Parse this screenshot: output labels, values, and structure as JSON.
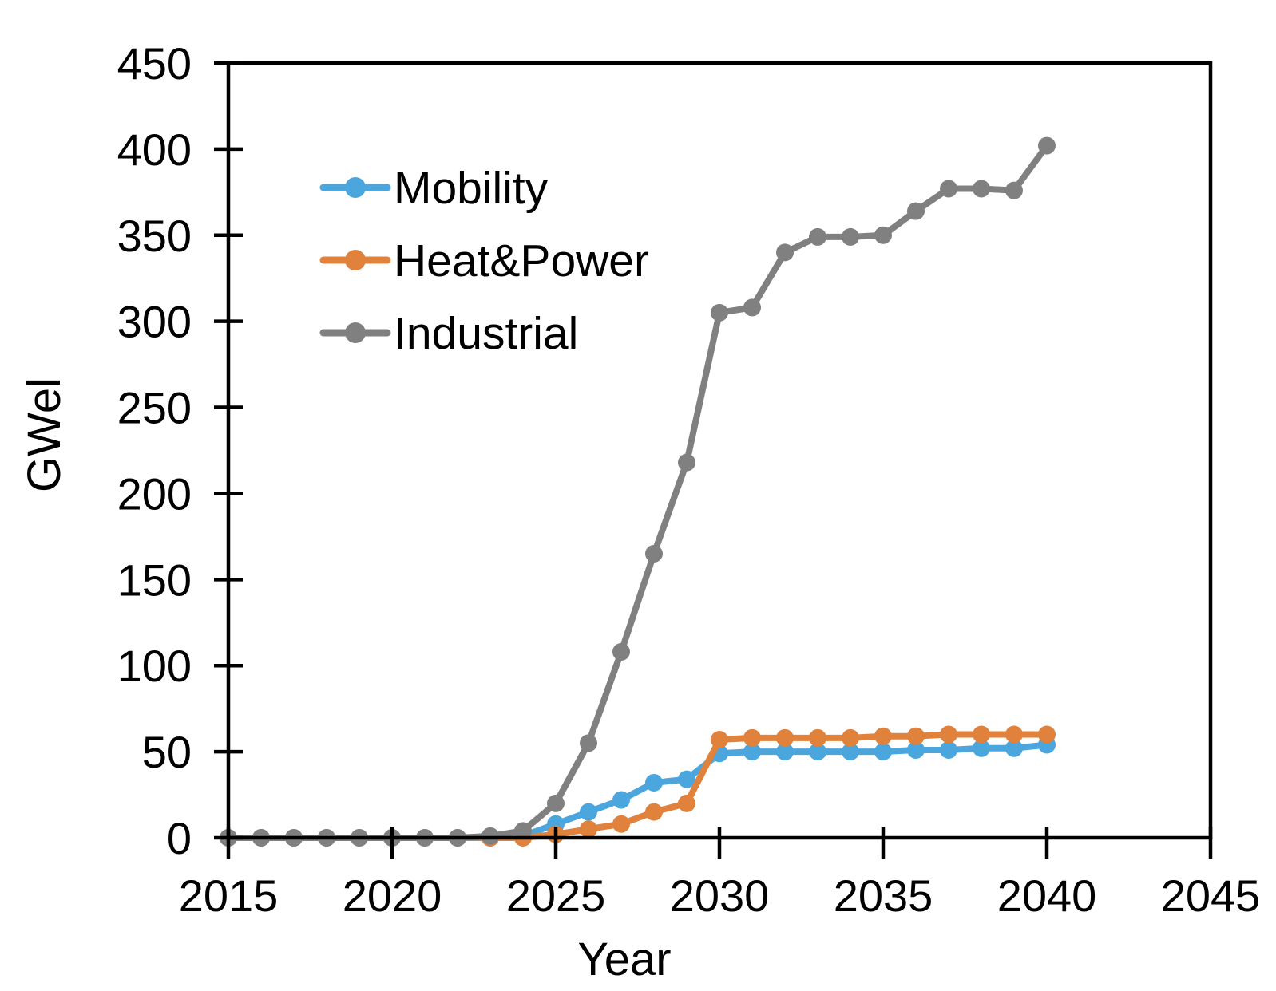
{
  "chart_data": {
    "type": "line",
    "title": "",
    "xlabel": "Year",
    "ylabel": "GWel",
    "xlim": [
      2015,
      2045
    ],
    "ylim": [
      0,
      450
    ],
    "xticks": [
      2015,
      2020,
      2025,
      2030,
      2035,
      2040,
      2045
    ],
    "yticks": [
      0,
      50,
      100,
      150,
      200,
      250,
      300,
      350,
      400,
      450
    ],
    "grid": false,
    "legend_position": "upper-left-inside",
    "axis_color": "#000000",
    "x": [
      2015,
      2016,
      2017,
      2018,
      2019,
      2020,
      2021,
      2022,
      2023,
      2024,
      2025,
      2026,
      2027,
      2028,
      2029,
      2030,
      2031,
      2032,
      2033,
      2034,
      2035,
      2036,
      2037,
      2038,
      2039,
      2040
    ],
    "series": [
      {
        "name": "Mobility",
        "color": "#4BA6DE",
        "values": [
          0,
          0,
          0,
          0,
          0,
          0,
          0,
          0,
          0,
          1,
          8,
          15,
          22,
          32,
          34,
          49,
          50,
          50,
          50,
          50,
          50,
          51,
          51,
          52,
          52,
          54
        ]
      },
      {
        "name": "Heat&Power",
        "color": "#E0813C",
        "values": [
          0,
          0,
          0,
          0,
          0,
          0,
          0,
          0,
          0,
          0,
          2,
          5,
          8,
          15,
          20,
          57,
          58,
          58,
          58,
          58,
          59,
          59,
          60,
          60,
          60,
          60
        ]
      },
      {
        "name": "Industrial",
        "color": "#808080",
        "values": [
          0,
          0,
          0,
          0,
          0,
          0,
          0,
          0,
          1,
          4,
          20,
          55,
          108,
          165,
          218,
          305,
          308,
          340,
          349,
          349,
          350,
          364,
          377,
          377,
          376,
          402
        ]
      }
    ]
  }
}
